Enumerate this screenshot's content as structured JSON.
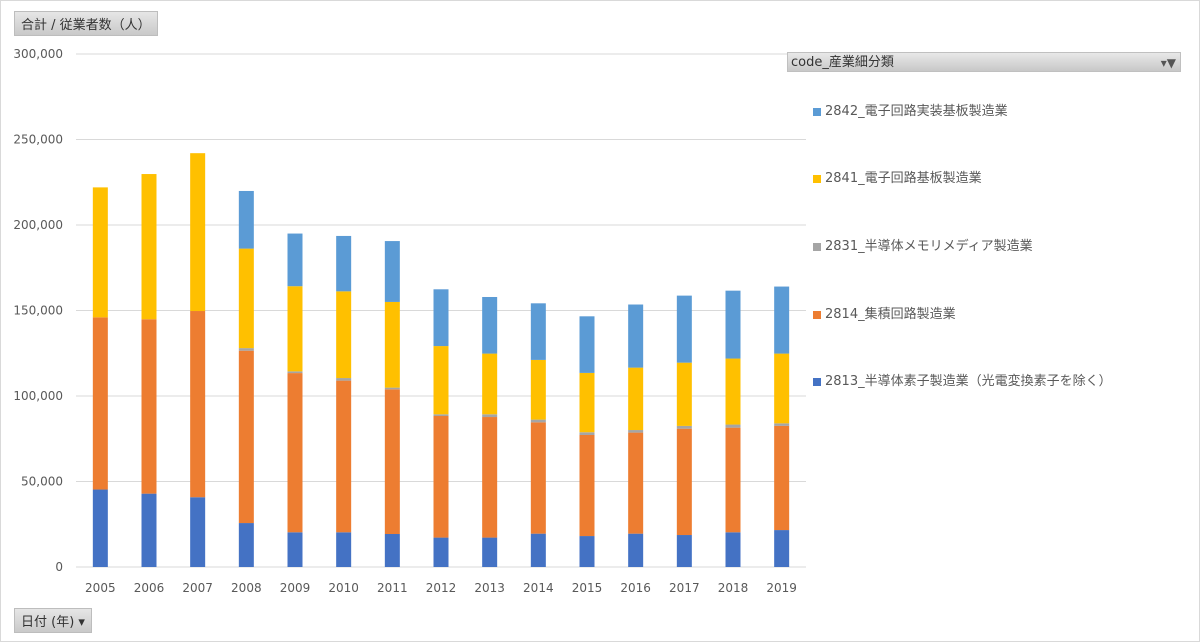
{
  "value_field_button": "合計 / 従業者数（人）",
  "axis_field_button": "日付 (年)",
  "axis_field_dropdown_icon": "▾",
  "legend_field": "code_産業細分類",
  "legend_filter_icon": "▾▼",
  "chart_data": {
    "type": "bar",
    "stacked": true,
    "grid": true,
    "legend_placement": "right",
    "ylim": [
      0,
      300000
    ],
    "yticks": [
      "0",
      "50,000",
      "100,000",
      "150,000",
      "200,000",
      "250,000",
      "300,000"
    ],
    "categories": [
      "2005",
      "2006",
      "2007",
      "2008",
      "2009",
      "2010",
      "2011",
      "2012",
      "2013",
      "2014",
      "2015",
      "2016",
      "2017",
      "2018",
      "2019"
    ],
    "series": [
      {
        "name": "2813_半導体素子製造業（光電変換素子を除く）",
        "color": "#4472c4",
        "values": [
          45300,
          42900,
          40800,
          25700,
          20300,
          20300,
          19300,
          17200,
          17200,
          19500,
          18100,
          19500,
          18700,
          20300,
          21600
        ]
      },
      {
        "name": "2814_集積回路製造業",
        "color": "#ed7d31",
        "values": [
          100700,
          102000,
          108900,
          100800,
          93100,
          88700,
          84600,
          71100,
          70500,
          65100,
          59100,
          59100,
          62200,
          61200,
          60900
        ]
      },
      {
        "name": "2831_半導体メモリメディア製造業",
        "color": "#a5a5a5",
        "values": [
          0,
          0,
          0,
          1500,
          1000,
          1500,
          1000,
          1000,
          1600,
          1600,
          1600,
          1500,
          1600,
          1800,
          1500
        ]
      },
      {
        "name": "2841_電子回路基板製造業",
        "color": "#ffc000",
        "values": [
          76000,
          84900,
          92300,
          58200,
          49800,
          50700,
          50100,
          39900,
          35500,
          34900,
          34700,
          36500,
          37000,
          38600,
          40800
        ]
      },
      {
        "name": "2842_電子回路実装基板製造業",
        "color": "#5b9bd5",
        "values": [
          0,
          0,
          0,
          33700,
          30800,
          32400,
          35600,
          33200,
          33100,
          33100,
          33100,
          36900,
          39200,
          39700,
          39200
        ]
      }
    ]
  }
}
